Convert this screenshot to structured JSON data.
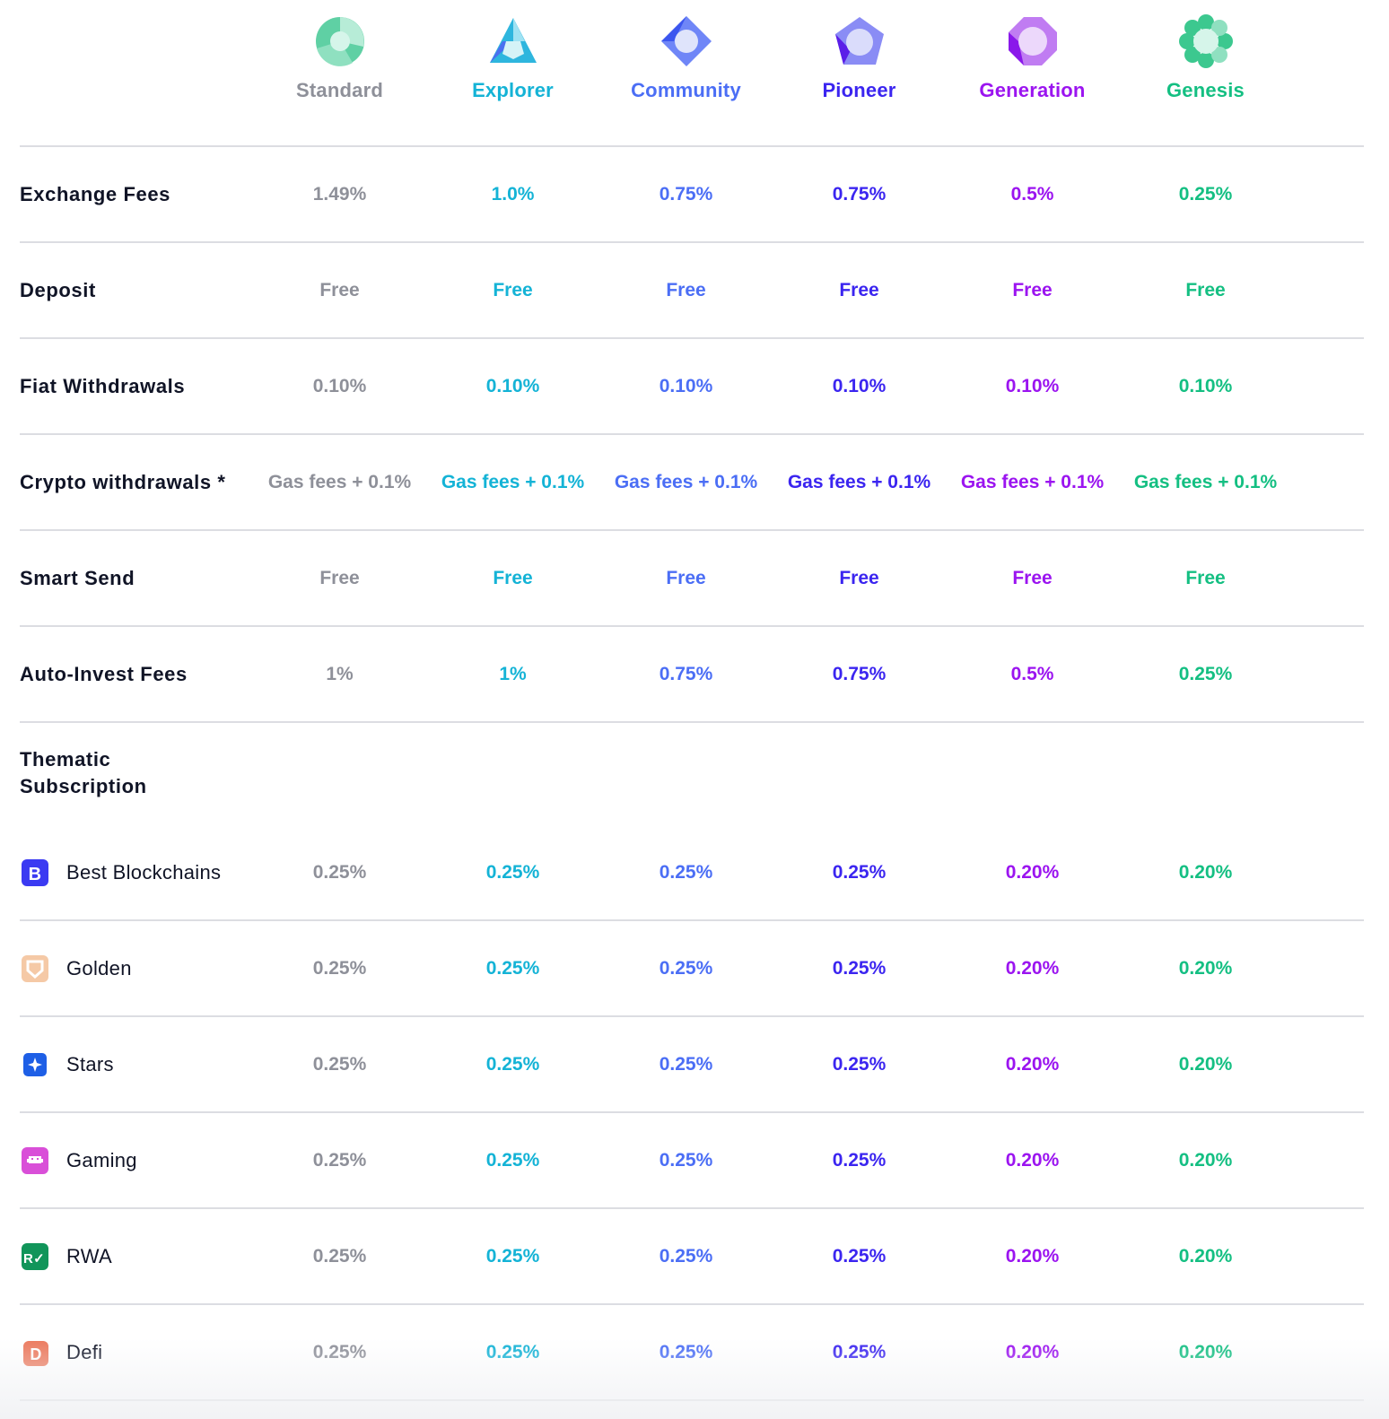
{
  "tiers": [
    {
      "name": "Standard",
      "color": "#8e9099",
      "icon": "standard-gem-icon"
    },
    {
      "name": "Explorer",
      "color": "#14b3d6",
      "icon": "explorer-gem-icon"
    },
    {
      "name": "Community",
      "color": "#4b6ef5",
      "icon": "community-gem-icon"
    },
    {
      "name": "Pioneer",
      "color": "#3b25f0",
      "icon": "pioneer-gem-icon"
    },
    {
      "name": "Generation",
      "color": "#9b14f0",
      "icon": "generation-gem-icon"
    },
    {
      "name": "Genesis",
      "color": "#14bf82",
      "icon": "genesis-gem-icon"
    }
  ],
  "rows": [
    {
      "label": "Exchange Fees",
      "values": [
        "1.49%",
        "1.0%",
        "0.75%",
        "0.75%",
        "0.5%",
        "0.25%"
      ]
    },
    {
      "label": "Deposit",
      "values": [
        "Free",
        "Free",
        "Free",
        "Free",
        "Free",
        "Free"
      ]
    },
    {
      "label": "Fiat Withdrawals",
      "values": [
        "0.10%",
        "0.10%",
        "0.10%",
        "0.10%",
        "0.10%",
        "0.10%"
      ]
    },
    {
      "label": "Crypto withdrawals *",
      "values": [
        "Gas fees + 0.1%",
        "Gas fees + 0.1%",
        "Gas fees + 0.1%",
        "Gas fees + 0.1%",
        "Gas fees + 0.1%",
        "Gas fees + 0.1%"
      ]
    },
    {
      "label": "Smart Send",
      "values": [
        "Free",
        "Free",
        "Free",
        "Free",
        "Free",
        "Free"
      ]
    },
    {
      "label": "Auto-Invest Fees",
      "values": [
        "1%",
        "1%",
        "0.75%",
        "0.75%",
        "0.5%",
        "0.25%"
      ]
    }
  ],
  "thematic": {
    "title": "Thematic Subscription",
    "items": [
      {
        "label": "Best Blockchains",
        "icon": "best-blockchains-icon",
        "values": [
          "0.25%",
          "0.25%",
          "0.25%",
          "0.25%",
          "0.20%",
          "0.20%"
        ]
      },
      {
        "label": "Golden",
        "icon": "golden-icon",
        "values": [
          "0.25%",
          "0.25%",
          "0.25%",
          "0.25%",
          "0.20%",
          "0.20%"
        ]
      },
      {
        "label": "Stars",
        "icon": "stars-icon",
        "values": [
          "0.25%",
          "0.25%",
          "0.25%",
          "0.25%",
          "0.20%",
          "0.20%"
        ]
      },
      {
        "label": "Gaming",
        "icon": "gaming-icon",
        "values": [
          "0.25%",
          "0.25%",
          "0.25%",
          "0.25%",
          "0.20%",
          "0.20%"
        ]
      },
      {
        "label": "RWA",
        "icon": "rwa-icon",
        "values": [
          "0.25%",
          "0.25%",
          "0.25%",
          "0.25%",
          "0.20%",
          "0.20%"
        ]
      },
      {
        "label": "Defi",
        "icon": "defi-icon",
        "values": [
          "0.25%",
          "0.25%",
          "0.25%",
          "0.25%",
          "0.20%",
          "0.20%"
        ]
      }
    ]
  }
}
